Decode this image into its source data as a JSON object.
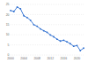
{
  "chart_data": {
    "type": "line",
    "categories": [
      "2000",
      null,
      null,
      null,
      "2004",
      null,
      null,
      null,
      "2008",
      null,
      null,
      null,
      "2012",
      null,
      null,
      null,
      "2016",
      null,
      null,
      null,
      "2020",
      null,
      null
    ],
    "values": [
      22,
      21.5,
      23.7,
      22.8,
      19.4,
      18.5,
      17.2,
      15,
      14.2,
      12.9,
      12,
      11.2,
      9.9,
      9,
      7.8,
      6.9,
      7.3,
      6.5,
      5.6,
      4.3,
      4.7,
      2.2,
      3.4
    ],
    "color": "#2f6fd0",
    "marker": "circle",
    "ylim": [
      0,
      25
    ],
    "yticks": [
      0,
      5,
      10,
      15,
      20,
      25
    ],
    "grid": true
  }
}
